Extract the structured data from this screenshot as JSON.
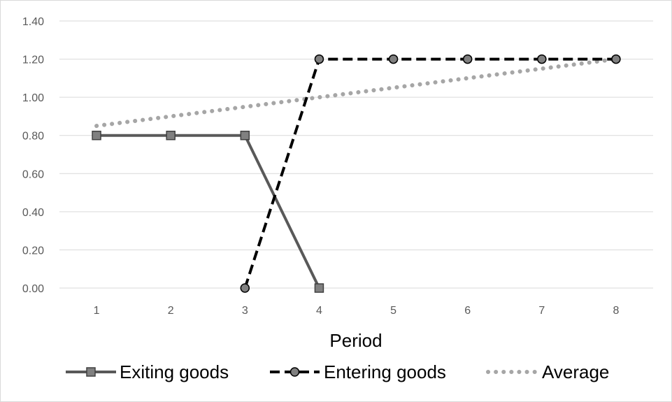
{
  "chart_data": {
    "type": "line",
    "title": "",
    "xlabel": "Period",
    "ylabel": "",
    "categories": [
      "1",
      "2",
      "3",
      "4",
      "5",
      "6",
      "7",
      "8"
    ],
    "ylim": [
      0,
      1.4
    ],
    "y_ticks": [
      "0.00",
      "0.20",
      "0.40",
      "0.60",
      "0.80",
      "1.00",
      "1.20",
      "1.40"
    ],
    "grid": "horizontal",
    "legend_position": "bottom",
    "series": [
      {
        "name": "Exiting goods",
        "values": [
          0.8,
          0.8,
          0.8,
          0.0,
          null,
          null,
          null,
          null
        ],
        "color": "#595959",
        "line_style": "solid",
        "marker": "square",
        "marker_fill": "#808080"
      },
      {
        "name": "Entering goods",
        "values": [
          null,
          null,
          0.0,
          1.2,
          1.2,
          1.2,
          1.2,
          1.2
        ],
        "color": "#000000",
        "line_style": "dashed",
        "marker": "circle",
        "marker_fill": "#808080"
      },
      {
        "name": "Average",
        "values": [
          0.85,
          0.9,
          0.95,
          1.0,
          1.05,
          1.1,
          1.15,
          1.2
        ],
        "color": "#a6a6a6",
        "line_style": "dotted",
        "marker": "none"
      }
    ]
  }
}
